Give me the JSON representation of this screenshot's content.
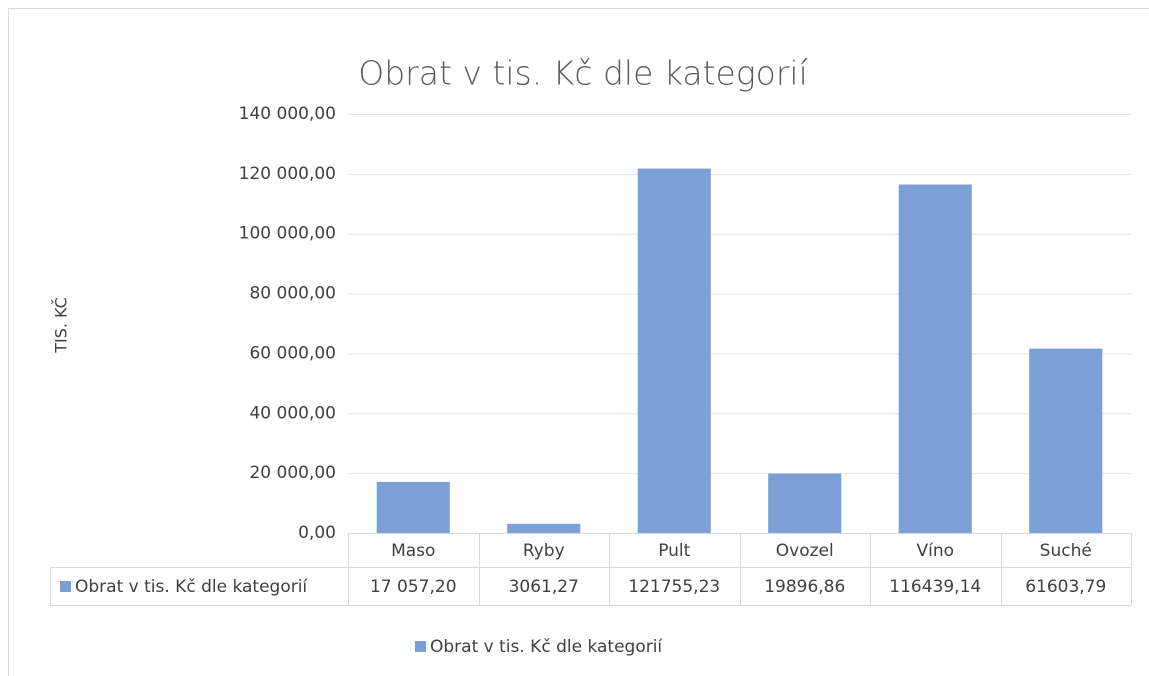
{
  "chart_data": {
    "type": "bar",
    "title": "Obrat v tis. Kč dle kategorií",
    "y_label": "TIS. KČ",
    "categories": [
      "Maso",
      "Ryby",
      "Pult",
      "Ovozel",
      "Víno",
      "Suché"
    ],
    "series": [
      {
        "name": "Obrat v tis. Kč dle kategorií",
        "color": "#7b9fd6",
        "values": [
          17057.2,
          3061.27,
          121755.23,
          19896.86,
          116439.14,
          61603.79
        ],
        "value_labels": [
          "17 057,20",
          "3061,27",
          "121755,23",
          "19896,86",
          "116439,14",
          "61603,79"
        ]
      }
    ],
    "ylim": [
      0,
      140000
    ],
    "yticks": [
      {
        "value": 0,
        "label": "0,00"
      },
      {
        "value": 20000,
        "label": "20 000,00"
      },
      {
        "value": 40000,
        "label": "40 000,00"
      },
      {
        "value": 60000,
        "label": "60 000,00"
      },
      {
        "value": 80000,
        "label": "80 000,00"
      },
      {
        "value": 100000,
        "label": "100 000,00"
      },
      {
        "value": 120000,
        "label": "120 000,00"
      },
      {
        "value": 140000,
        "label": "140 000,00"
      }
    ],
    "grid": true,
    "legend": "bottom",
    "data_table": true
  }
}
